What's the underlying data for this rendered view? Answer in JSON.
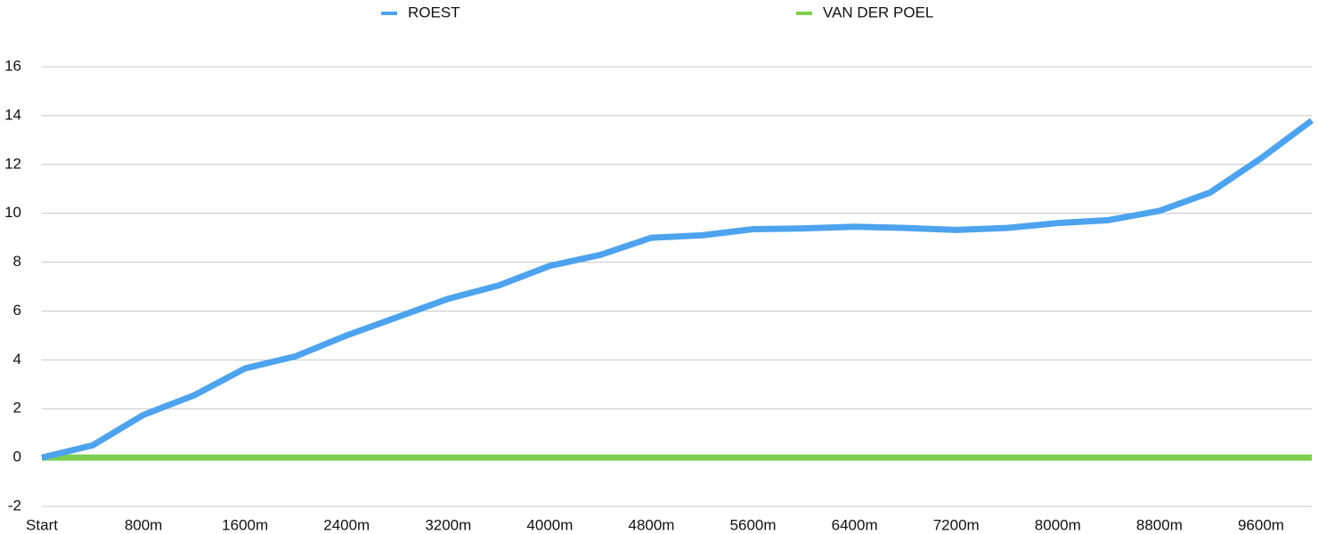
{
  "chart_data": {
    "type": "line",
    "categories": [
      "Start",
      null,
      "800m",
      null,
      "1600m",
      null,
      "2400m",
      null,
      "3200m",
      null,
      "4000m",
      null,
      "4800m",
      null,
      "5600m",
      null,
      "6400m",
      null,
      "7200m",
      null,
      "8000m",
      null,
      "8800m",
      null,
      "9600m",
      null
    ],
    "series": [
      {
        "name": "ROEST",
        "color": "#4da3ee",
        "values": [
          0,
          0.5,
          1.75,
          2.55,
          3.65,
          4.15,
          5.0,
          5.75,
          6.5,
          7.05,
          7.85,
          8.3,
          9.0,
          9.1,
          9.35,
          9.38,
          9.45,
          9.4,
          9.32,
          9.4,
          9.6,
          9.72,
          10.1,
          10.85,
          12.25,
          13.8
        ]
      },
      {
        "name": "VAN DER POEL",
        "color": "#7ccf4f",
        "values": [
          0,
          0,
          0,
          0,
          0,
          0,
          0,
          0,
          0,
          0,
          0,
          0,
          0,
          0,
          0,
          0,
          0,
          0,
          0,
          0,
          0,
          0,
          0,
          0,
          0,
          0
        ]
      }
    ],
    "ylim": [
      -2,
      16
    ],
    "yticks": [
      -2,
      0,
      2,
      4,
      6,
      8,
      10,
      12,
      14,
      16
    ],
    "grid": true,
    "legend": "top"
  }
}
